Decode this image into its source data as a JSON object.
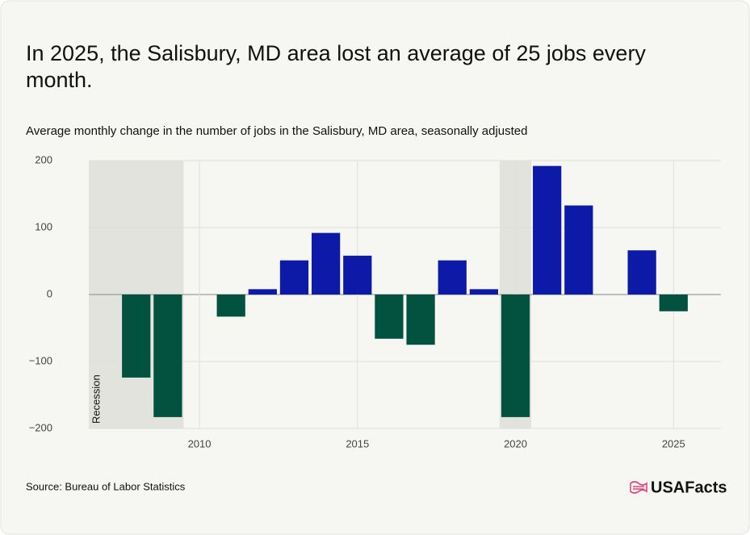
{
  "chart_data": {
    "type": "bar",
    "title": "In 2025, the Salisbury, MD area lost an average of 25 jobs every month.",
    "subtitle": "Average monthly change in the number of jobs in the Salisbury, MD area, seasonally adjusted",
    "source": "Source: Bureau of Labor Statistics",
    "brand": "USAFacts",
    "x": [
      2008,
      2009,
      2010,
      2011,
      2012,
      2013,
      2014,
      2015,
      2016,
      2017,
      2018,
      2019,
      2020,
      2021,
      2022,
      2023,
      2024,
      2025
    ],
    "values": [
      -124,
      -183,
      0,
      -33,
      8,
      51,
      92,
      58,
      -66,
      -75,
      51,
      8,
      -183,
      192,
      133,
      0,
      66,
      -25
    ],
    "positive_color": "#0d1aa8",
    "negative_color": "#03513f",
    "xlim": [
      2006.5,
      2026.5
    ],
    "xticks": [
      2010,
      2015,
      2020,
      2025
    ],
    "ylim": [
      -200,
      200
    ],
    "yticks": [
      {
        "value": -200,
        "label": "−200"
      },
      {
        "value": -100,
        "label": "−100"
      },
      0,
      100,
      200
    ],
    "grid": true,
    "recessions": [
      [
        2006.5,
        2009.5
      ],
      [
        2019.5,
        2020.5
      ]
    ],
    "recession_label": "Recession"
  }
}
